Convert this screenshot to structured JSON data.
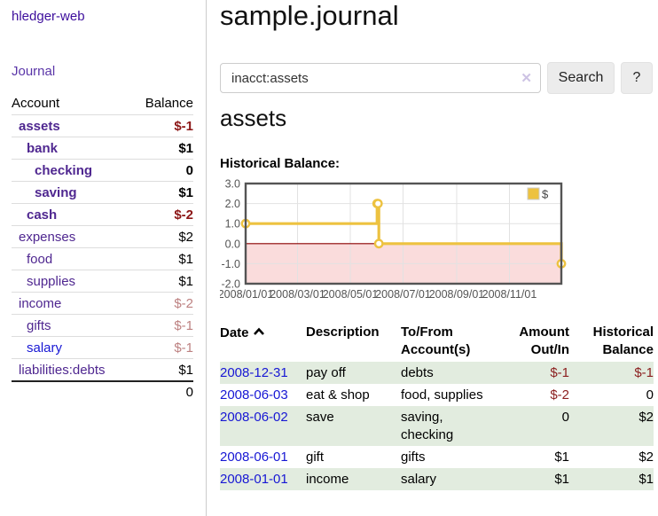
{
  "app": {
    "brand": "hledger-web",
    "nav_journal": "Journal"
  },
  "sidebar": {
    "header": {
      "account": "Account",
      "balance": "Balance"
    },
    "accounts": [
      {
        "name": "assets",
        "indent": 1,
        "bold": true,
        "link": "purple",
        "balance": "$-1",
        "balance_class": "neg-strong",
        "balance_bold": true
      },
      {
        "name": "bank",
        "indent": 2,
        "bold": true,
        "link": "purple",
        "balance": "$1",
        "balance_class": "",
        "balance_bold": true
      },
      {
        "name": "checking",
        "indent": 3,
        "bold": true,
        "link": "purple",
        "balance": "0",
        "balance_class": "",
        "balance_bold": true
      },
      {
        "name": "saving",
        "indent": 3,
        "bold": true,
        "link": "purple",
        "balance": "$1",
        "balance_class": "",
        "balance_bold": true
      },
      {
        "name": "cash",
        "indent": 2,
        "bold": true,
        "link": "purple",
        "balance": "$-2",
        "balance_class": "neg-strong",
        "balance_bold": true
      },
      {
        "name": "expenses",
        "indent": 1,
        "bold": false,
        "link": "purple",
        "balance": "$2",
        "balance_class": "",
        "balance_bold": false
      },
      {
        "name": "food",
        "indent": 2,
        "bold": false,
        "link": "purple",
        "balance": "$1",
        "balance_class": "",
        "balance_bold": false
      },
      {
        "name": "supplies",
        "indent": 2,
        "bold": false,
        "link": "purple",
        "balance": "$1",
        "balance_class": "",
        "balance_bold": false
      },
      {
        "name": "income",
        "indent": 1,
        "bold": false,
        "link": "purple",
        "balance": "$-2",
        "balance_class": "neg-muted",
        "balance_bold": false
      },
      {
        "name": "gifts",
        "indent": 2,
        "bold": false,
        "link": "purple",
        "balance": "$-1",
        "balance_class": "neg-muted",
        "balance_bold": false
      },
      {
        "name": "salary",
        "indent": 2,
        "bold": false,
        "link": "blue",
        "balance": "$-1",
        "balance_class": "neg-muted",
        "balance_bold": false
      },
      {
        "name": "liabilities:debts",
        "indent": 1,
        "bold": false,
        "link": "purple",
        "balance": "$1",
        "balance_class": "",
        "balance_bold": false
      }
    ],
    "total": "0"
  },
  "header": {
    "title": "sample.journal"
  },
  "search": {
    "value": "inacct:assets",
    "clear_icon": "✕",
    "button": "Search",
    "help_button": "?"
  },
  "account_page": {
    "title": "assets",
    "chart_label": "Historical Balance:"
  },
  "chart_data": {
    "type": "line",
    "title": "Historical Balance",
    "series": [
      {
        "name": "$",
        "color": "#edc240",
        "step": true,
        "points": [
          [
            "2008-01-01",
            1
          ],
          [
            "2008-06-01",
            2
          ],
          [
            "2008-06-02",
            2
          ],
          [
            "2008-06-03",
            0
          ],
          [
            "2008-12-31",
            -1
          ]
        ]
      }
    ],
    "ylim": [
      -2,
      3
    ],
    "yticks": [
      "3.0",
      "2.0",
      "1.0",
      "0.0",
      "-1.0",
      "-2.0"
    ],
    "xticks": [
      "2008/01/01",
      "2008/03/01",
      "2008/05/01",
      "2008/07/01",
      "2008/09/01",
      "2008/11/01"
    ],
    "x_start": "2008-01-01",
    "x_end": "2008-12-31",
    "grid": true,
    "grid_color": "#e2e2e2",
    "border_color": "#545454",
    "tick_label_color": "#545454",
    "negative_region_color": "#fadcdc",
    "zero_line_color": "#8b0000",
    "legend": {
      "label": "$",
      "position": "top-right",
      "swatch_color": "#edc240"
    }
  },
  "register": {
    "columns": [
      {
        "line1": "Date",
        "line2": "",
        "align": "left",
        "sortable": true
      },
      {
        "line1": "Description",
        "line2": "",
        "align": "left"
      },
      {
        "line1": "To/From",
        "line2": "Account(s)",
        "align": "left"
      },
      {
        "line1": "Amount",
        "line2": "Out/In",
        "align": "right"
      },
      {
        "line1": "Historical",
        "line2": "Balance",
        "align": "right"
      }
    ],
    "rows": [
      {
        "date": "2008-12-31",
        "description": "pay off",
        "accounts": "debts",
        "amount": "$-1",
        "balance": "$-1"
      },
      {
        "date": "2008-06-03",
        "description": "eat & shop",
        "accounts": "food, supplies",
        "amount": "$-2",
        "balance": "0"
      },
      {
        "date": "2008-06-02",
        "description": "save",
        "accounts": "saving,\nchecking",
        "amount": "0",
        "balance": "$2"
      },
      {
        "date": "2008-06-01",
        "description": "gift",
        "accounts": "gifts",
        "amount": "$1",
        "balance": "$2"
      },
      {
        "date": "2008-01-01",
        "description": "income",
        "accounts": "salary",
        "amount": "$1",
        "balance": "$1"
      }
    ]
  }
}
